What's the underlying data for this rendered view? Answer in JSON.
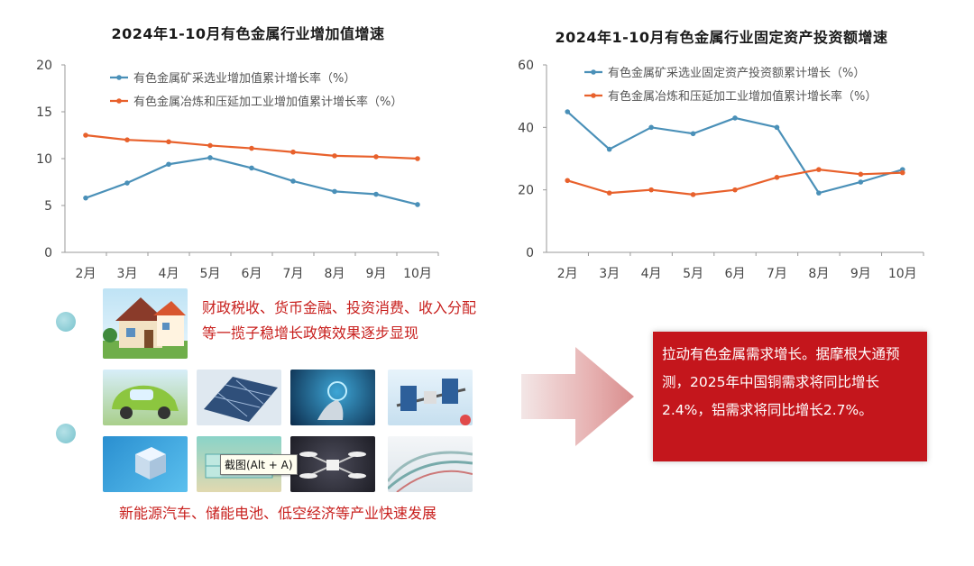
{
  "chart_data": [
    {
      "type": "line",
      "title": "2024年1-10月有色金属行业增加值增速",
      "categories": [
        "2月",
        "3月",
        "4月",
        "5月",
        "6月",
        "7月",
        "8月",
        "9月",
        "10月"
      ],
      "ylim": [
        0,
        20
      ],
      "yticks": [
        "0",
        "5",
        "10",
        "15",
        "20"
      ],
      "legend_position": "top-right",
      "grid": false,
      "series": [
        {
          "name": "有色金属矿采选业增加值累计增长率（%）",
          "color": "#4a90b8",
          "values": [
            5.8,
            7.4,
            9.4,
            10.1,
            9.0,
            7.6,
            6.5,
            6.2,
            5.1
          ]
        },
        {
          "name": "有色金属冶炼和压延加工业增加值累计增长率（%）",
          "color": "#e8612c",
          "values": [
            12.5,
            12.0,
            11.8,
            11.4,
            11.1,
            10.7,
            10.3,
            10.2,
            10.0
          ]
        }
      ]
    },
    {
      "type": "line",
      "title": "2024年1-10月有色金属行业固定资产投资额增速",
      "categories": [
        "2月",
        "3月",
        "4月",
        "5月",
        "6月",
        "7月",
        "8月",
        "9月",
        "10月"
      ],
      "ylim": [
        0,
        60
      ],
      "yticks": [
        "0",
        "20",
        "40",
        "60"
      ],
      "legend_position": "top-right",
      "grid": false,
      "series": [
        {
          "name": "有色金属矿采选业固定资产投资额累计增长（%）",
          "color": "#4a90b8",
          "values": [
            45.0,
            33.0,
            40.0,
            38.0,
            43.0,
            40.0,
            19.0,
            22.5,
            26.5
          ]
        },
        {
          "name": "有色金属冶炼和压延加工业增加值累计增长率（%）",
          "color": "#e8612c",
          "values": [
            23.0,
            19.0,
            20.0,
            18.5,
            20.0,
            24.0,
            26.5,
            25.0,
            25.5
          ]
        }
      ]
    }
  ],
  "captions": {
    "top": "财政税收、货币金融、投资消费、收入分配等一揽子稳增长政策效果逐步显现",
    "bottom": "新能源汽车、储能电池、低空经济等产业快速发展"
  },
  "tooltip": "截图(Alt + A)",
  "callout": "拉动有色金属需求增长。据摩根大通预测，2025年中国铜需求将同比增长2.4%，铝需求将同比增长2.7%。",
  "colors": {
    "accent_red": "#c4161c",
    "series_blue": "#4a90b8",
    "series_orange": "#e8612c"
  }
}
